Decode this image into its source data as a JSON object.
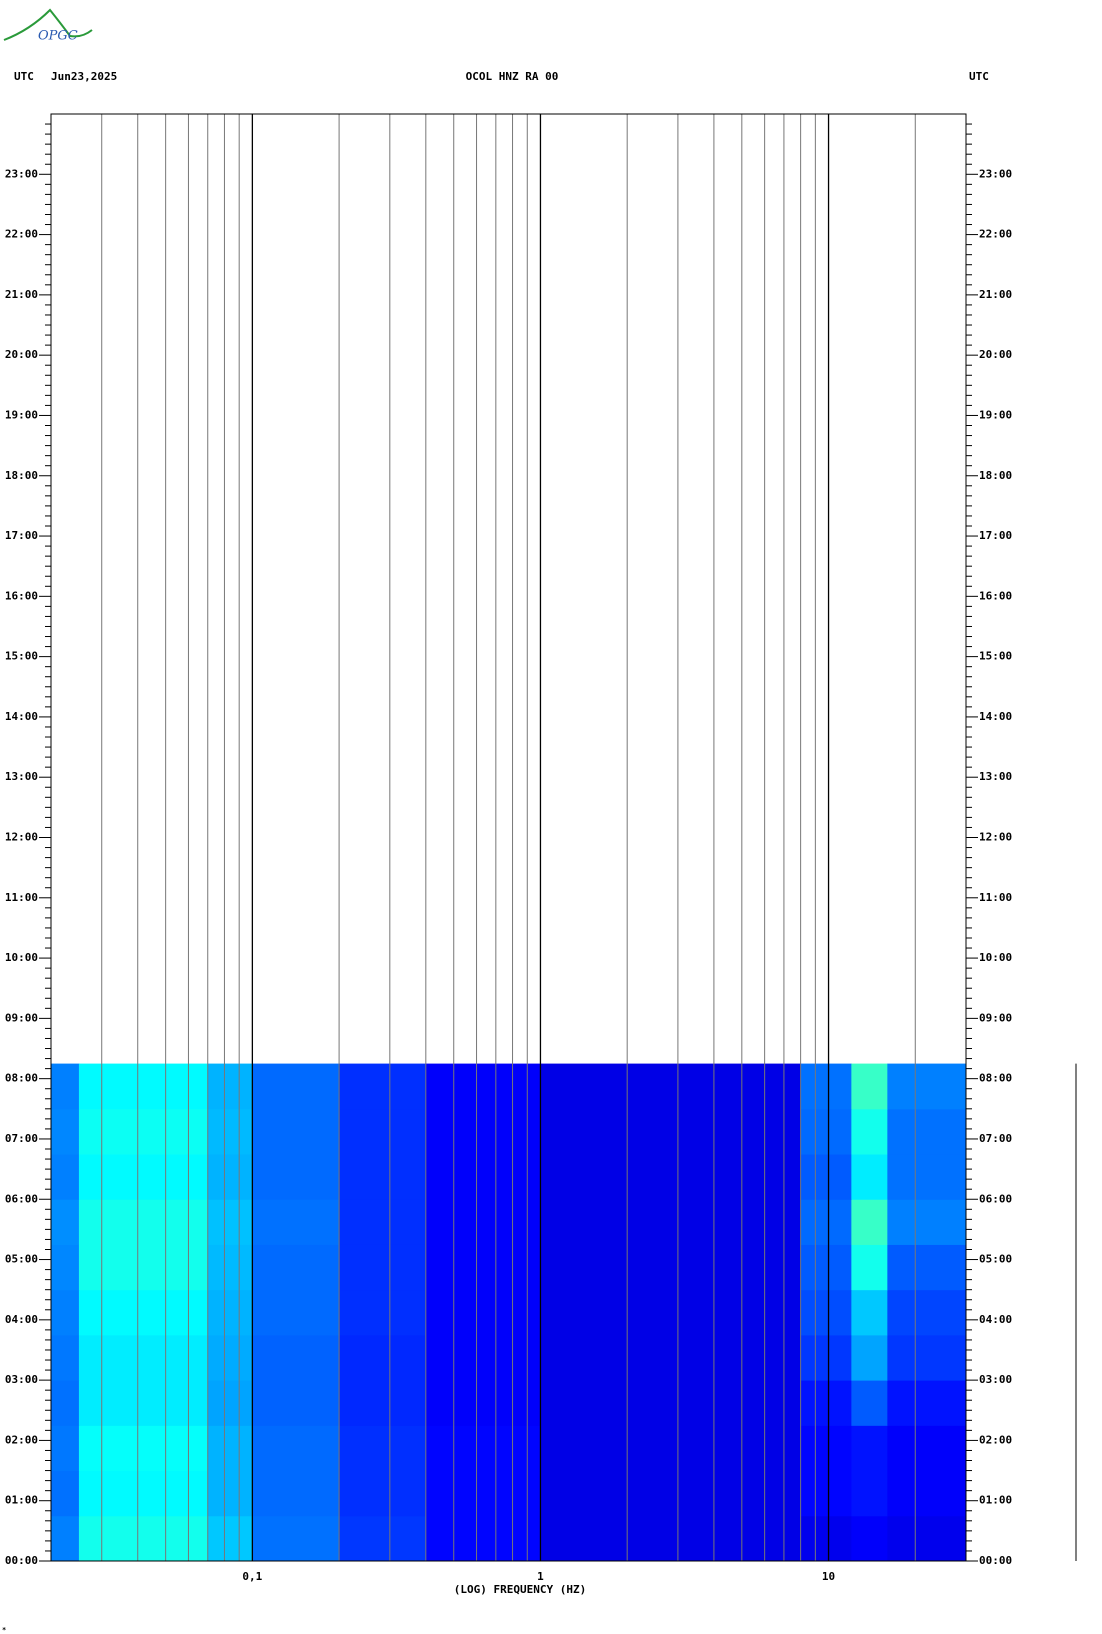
{
  "logo": "OPGC",
  "chart_data": {
    "type": "spectrogram",
    "title": "OCOL HNZ RA 00",
    "left_label": "UTC",
    "date": "Jun23,2025",
    "right_label": "UTC",
    "x_label": "(LOG) FREQUENCY (HZ)",
    "xscale": "log",
    "xlim": [
      0.02,
      30
    ],
    "xticks": [
      {
        "value": 0.1,
        "label": "0,1"
      },
      1,
      10
    ],
    "ylim": [
      0,
      24
    ],
    "yticks": [
      {
        "value": 0,
        "label": "00:00"
      },
      {
        "value": 1,
        "label": "01:00"
      },
      {
        "value": 2,
        "label": "02:00"
      },
      {
        "value": 3,
        "label": "03:00"
      },
      {
        "value": 4,
        "label": "04:00"
      },
      {
        "value": 5,
        "label": "05:00"
      },
      {
        "value": 6,
        "label": "06:00"
      },
      {
        "value": 7,
        "label": "07:00"
      },
      {
        "value": 8,
        "label": "08:00"
      },
      {
        "value": 9,
        "label": "09:00"
      },
      {
        "value": 10,
        "label": "10:00"
      },
      {
        "value": 11,
        "label": "11:00"
      },
      {
        "value": 12,
        "label": "12:00"
      },
      {
        "value": 13,
        "label": "13:00"
      },
      {
        "value": 14,
        "label": "14:00"
      },
      {
        "value": 15,
        "label": "15:00"
      },
      {
        "value": 16,
        "label": "16:00"
      },
      {
        "value": 17,
        "label": "17:00"
      },
      {
        "value": 18,
        "label": "18:00"
      },
      {
        "value": 19,
        "label": "19:00"
      },
      {
        "value": 20,
        "label": "20:00"
      },
      {
        "value": 21,
        "label": "21:00"
      },
      {
        "value": 22,
        "label": "22:00"
      },
      {
        "value": 23,
        "label": "23:00"
      }
    ],
    "minor_ticks_per_hour": 6,
    "grid": true,
    "colormap": "jet",
    "zlim": [
      0,
      1.4
    ],
    "freq_edges": [
      0.02,
      0.025,
      0.07,
      0.1,
      0.2,
      0.4,
      1,
      8,
      12,
      16,
      30
    ],
    "time_edges": [
      0,
      0.75,
      1.5,
      2.25,
      3,
      3.75,
      4.5,
      5.25,
      6,
      6.75,
      7.5,
      8.25
    ],
    "intensity": [
      [
        0.35,
        0.55,
        0.45,
        0.33,
        0.25,
        0.18,
        0.14,
        0.15,
        0.17,
        0.15
      ],
      [
        0.33,
        0.52,
        0.42,
        0.32,
        0.24,
        0.18,
        0.14,
        0.18,
        0.2,
        0.17
      ],
      [
        0.34,
        0.53,
        0.42,
        0.32,
        0.24,
        0.18,
        0.14,
        0.18,
        0.2,
        0.17
      ],
      [
        0.33,
        0.5,
        0.4,
        0.31,
        0.23,
        0.17,
        0.14,
        0.2,
        0.3,
        0.2
      ],
      [
        0.34,
        0.5,
        0.41,
        0.31,
        0.23,
        0.17,
        0.14,
        0.25,
        0.4,
        0.25
      ],
      [
        0.35,
        0.52,
        0.42,
        0.32,
        0.24,
        0.17,
        0.14,
        0.28,
        0.45,
        0.27
      ],
      [
        0.36,
        0.55,
        0.43,
        0.32,
        0.24,
        0.17,
        0.14,
        0.3,
        0.55,
        0.3
      ],
      [
        0.37,
        0.55,
        0.44,
        0.33,
        0.24,
        0.17,
        0.14,
        0.32,
        0.6,
        0.35
      ],
      [
        0.35,
        0.52,
        0.42,
        0.32,
        0.24,
        0.17,
        0.14,
        0.3,
        0.5,
        0.33
      ],
      [
        0.36,
        0.54,
        0.43,
        0.32,
        0.24,
        0.17,
        0.14,
        0.32,
        0.55,
        0.33
      ],
      [
        0.35,
        0.52,
        0.42,
        0.32,
        0.24,
        0.17,
        0.14,
        0.33,
        0.6,
        0.35
      ]
    ]
  }
}
